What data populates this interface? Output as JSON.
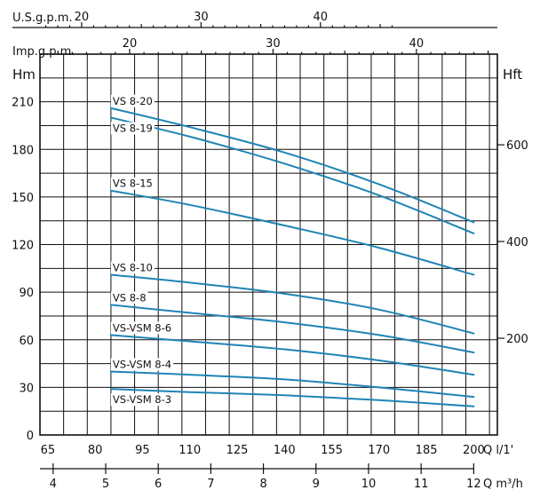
{
  "chart_data": {
    "type": "line",
    "curve_color": "#1f84b4",
    "grid": true,
    "left_axis": {
      "label": "Hm",
      "ticks": [
        0,
        30,
        60,
        90,
        120,
        150,
        180,
        210
      ],
      "range": [
        0,
        240
      ]
    },
    "right_axis": {
      "label": "Hft",
      "ticks": [
        200,
        400,
        600
      ],
      "tick_labels": [
        "200",
        "400",
        "600"
      ]
    },
    "top_axis_1": {
      "label": "U.S.g.p.m.",
      "ticks": [
        20,
        30,
        40
      ],
      "tick_labels": [
        "20",
        "30",
        "40"
      ]
    },
    "top_axis_2": {
      "label": "Imp.g.p.m.",
      "ticks": [
        20,
        30,
        40
      ],
      "tick_labels": [
        "20",
        "30",
        "40"
      ]
    },
    "bottom_axis_1": {
      "label": "Q l/1'",
      "ticks": [
        65,
        80,
        95,
        110,
        125,
        140,
        155,
        170,
        185,
        200
      ],
      "tick_labels": [
        "65",
        "80",
        "95",
        "110",
        "125",
        "140",
        "155",
        "170",
        "185",
        "200"
      ],
      "range": [
        62.5,
        207.5
      ]
    },
    "bottom_axis_2": {
      "label": "Q m³/h",
      "ticks": [
        4,
        5,
        6,
        7,
        8,
        9,
        10,
        11,
        12
      ],
      "tick_labels": [
        "4",
        "5",
        "6",
        "7",
        "8",
        "9",
        "10",
        "11",
        "12"
      ]
    },
    "series": [
      {
        "name": "VS 8-20",
        "x": [
          85,
          110,
          140,
          170,
          200
        ],
        "y": [
          206,
          194,
          178,
          158,
          134
        ]
      },
      {
        "name": "VS 8-19",
        "x": [
          85,
          110,
          140,
          170,
          200
        ],
        "y": [
          200,
          188,
          171,
          151,
          127
        ]
      },
      {
        "name": "VS 8-15",
        "x": [
          85,
          110,
          140,
          170,
          200
        ],
        "y": [
          154,
          145,
          132,
          118,
          101
        ]
      },
      {
        "name": "VS 8-10",
        "x": [
          85,
          110,
          140,
          170,
          200
        ],
        "y": [
          101,
          96,
          89,
          79,
          64
        ]
      },
      {
        "name": "VS 8-8",
        "x": [
          85,
          110,
          140,
          170,
          200
        ],
        "y": [
          82,
          77,
          71,
          63,
          52
        ]
      },
      {
        "name": "VS-VSM 8-6",
        "x": [
          85,
          110,
          140,
          170,
          200
        ],
        "y": [
          63,
          59,
          54,
          47,
          38
        ]
      },
      {
        "name": "VS-VSM 8-4",
        "x": [
          85,
          110,
          140,
          170,
          200
        ],
        "y": [
          40,
          38,
          35,
          30,
          24
        ]
      },
      {
        "name": "VS-VSM 8-3",
        "x": [
          85,
          110,
          140,
          170,
          200
        ],
        "y": [
          29,
          27,
          25,
          22,
          18
        ]
      }
    ]
  }
}
